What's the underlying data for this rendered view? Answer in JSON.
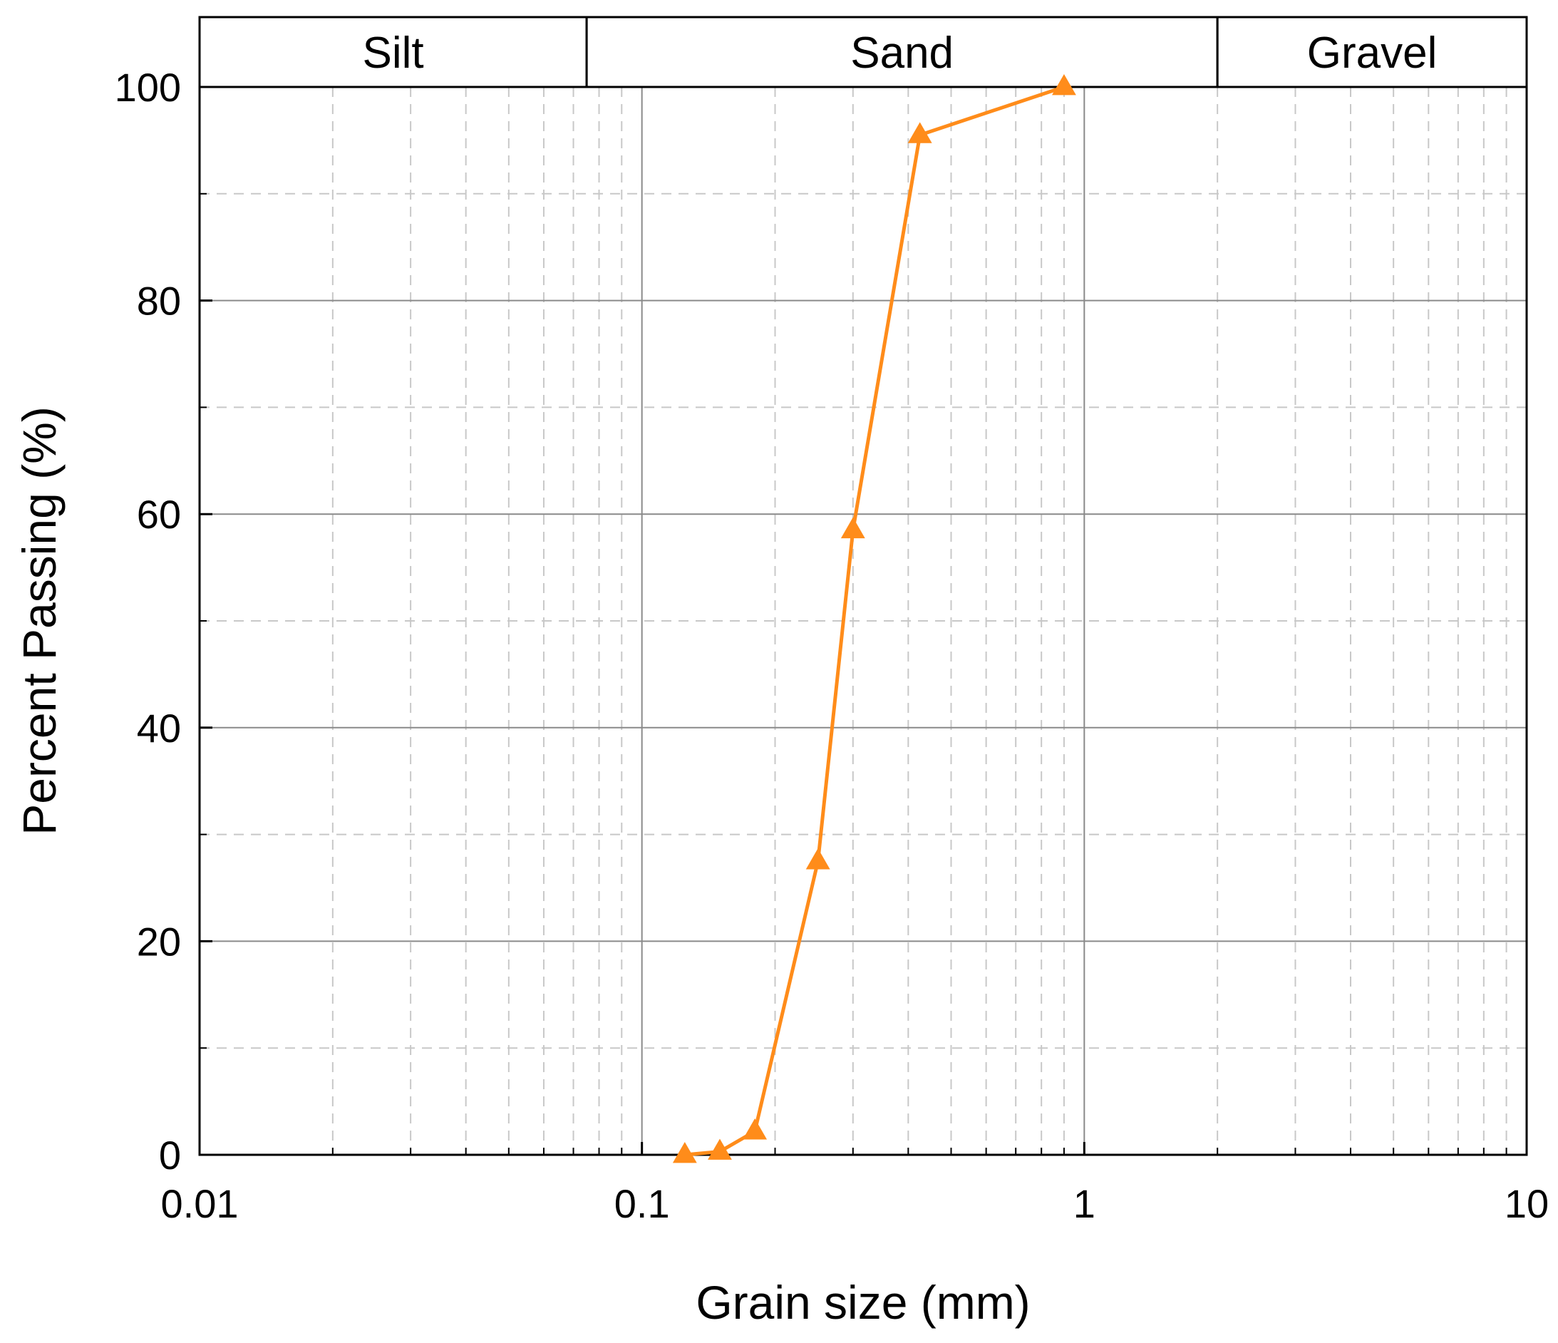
{
  "chart_data": {
    "type": "line",
    "x_scale": "log",
    "xlabel": "Grain size (mm)",
    "ylabel": "Percent Passing (%)",
    "xlim": [
      0.01,
      10
    ],
    "ylim": [
      0,
      100
    ],
    "x_ticks": [
      {
        "value": 0.01,
        "label": "0.01"
      },
      {
        "value": 0.1,
        "label": "0.1"
      },
      {
        "value": 1,
        "label": "1"
      },
      {
        "value": 10,
        "label": "10"
      }
    ],
    "y_ticks": [
      {
        "value": 0,
        "label": "0"
      },
      {
        "value": 20,
        "label": "20"
      },
      {
        "value": 40,
        "label": "40"
      },
      {
        "value": 60,
        "label": "60"
      },
      {
        "value": 80,
        "label": "80"
      },
      {
        "value": 100,
        "label": "100"
      }
    ],
    "grid": true,
    "soil_classes": [
      {
        "label": "Silt",
        "from": 0.01,
        "to": 0.075
      },
      {
        "label": "Sand",
        "from": 0.075,
        "to": 2
      },
      {
        "label": "Gravel",
        "from": 2,
        "to": 10
      }
    ],
    "series": [
      {
        "marker": "triangle",
        "color": "#ff8c1a",
        "points": [
          {
            "x": 0.125,
            "y": 0
          },
          {
            "x": 0.15,
            "y": 0.3
          },
          {
            "x": 0.18,
            "y": 2.2
          },
          {
            "x": 0.25,
            "y": 27.5
          },
          {
            "x": 0.3,
            "y": 58.5
          },
          {
            "x": 0.425,
            "y": 95.5
          },
          {
            "x": 0.9,
            "y": 100
          }
        ]
      }
    ]
  }
}
